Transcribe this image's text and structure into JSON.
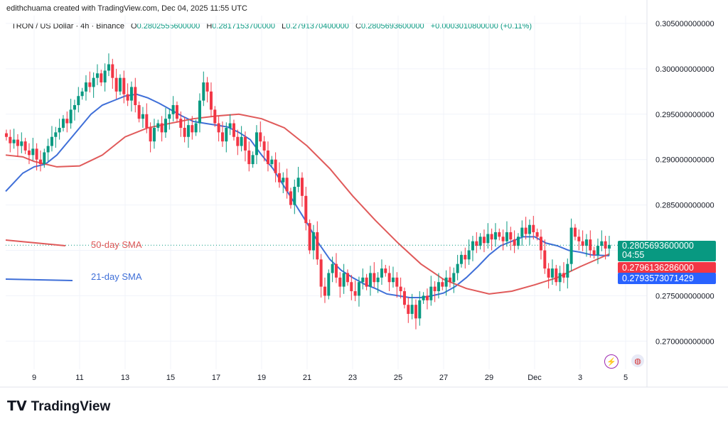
{
  "header": {
    "credit": "edithchuama created with TradingView.com, Dec 04, 2025 11:55 UTC",
    "symbol": "TRON / US Dollar · 4h · Binance",
    "o_label": "O",
    "o": "0.2802555600000",
    "h_label": "H",
    "h": "0.2817153700000",
    "l_label": "L",
    "l": "0.2791370400000",
    "c_label": "C",
    "c": "0.2805693600000",
    "change": "+0.0003010800000 (+0.11%)"
  },
  "badges": {
    "last_price": "0.2805693600000",
    "countdown": "04:55",
    "sma50": "0.2796136286000",
    "sma21": "0.2793573071429"
  },
  "colors": {
    "up": "#089981",
    "down": "#f23645",
    "sma50": "#e05a5a",
    "sma21": "#3f6fd8",
    "last": "#089981",
    "sma21_badge": "#2962ff"
  },
  "brand": "TradingView",
  "chart_data": {
    "type": "candlestick",
    "interval": "4h",
    "ylim": [
      0.267,
      0.306
    ],
    "yticks": [
      "0.305000000000",
      "0.300000000000",
      "0.295000000000",
      "0.290000000000",
      "0.285000000000",
      "0.280000000000",
      "0.275000000000",
      "0.270000000000"
    ],
    "yticks_values": [
      0.305,
      0.3,
      0.295,
      0.29,
      0.285,
      0.28,
      0.275,
      0.27
    ],
    "xticks": [
      {
        "label": "9",
        "day": 9
      },
      {
        "label": "11",
        "day": 11
      },
      {
        "label": "13",
        "day": 13
      },
      {
        "label": "15",
        "day": 15
      },
      {
        "label": "17",
        "day": 17
      },
      {
        "label": "19",
        "day": 19
      },
      {
        "label": "21",
        "day": 21
      },
      {
        "label": "23",
        "day": 23
      },
      {
        "label": "25",
        "day": 25
      },
      {
        "label": "27",
        "day": 27
      },
      {
        "label": "29",
        "day": 29
      },
      {
        "label": "Dec",
        "day": 31
      },
      {
        "label": "3",
        "day": 33
      },
      {
        "label": "5",
        "day": 35
      }
    ],
    "last_candle_day": 34.28,
    "closes": [
      0.2925,
      0.2918,
      0.2922,
      0.2915,
      0.292,
      0.291,
      0.2905,
      0.2912,
      0.29,
      0.2895,
      0.2908,
      0.2915,
      0.2925,
      0.293,
      0.2935,
      0.2945,
      0.294,
      0.2955,
      0.296,
      0.297,
      0.2975,
      0.2985,
      0.298,
      0.299,
      0.2995,
      0.2985,
      0.2998,
      0.3005,
      0.299,
      0.2975,
      0.299,
      0.2972,
      0.2965,
      0.298,
      0.296,
      0.2945,
      0.295,
      0.2935,
      0.292,
      0.2935,
      0.294,
      0.293,
      0.2945,
      0.295,
      0.296,
      0.2945,
      0.2935,
      0.2925,
      0.2938,
      0.293,
      0.294,
      0.2965,
      0.2985,
      0.2975,
      0.2955,
      0.294,
      0.293,
      0.292,
      0.2935,
      0.294,
      0.2925,
      0.2915,
      0.2925,
      0.291,
      0.2895,
      0.2905,
      0.293,
      0.292,
      0.291,
      0.2895,
      0.29,
      0.2885,
      0.2875,
      0.288,
      0.2865,
      0.285,
      0.287,
      0.288,
      0.286,
      0.283,
      0.28,
      0.282,
      0.279,
      0.276,
      0.275,
      0.2775,
      0.2785,
      0.277,
      0.276,
      0.2775,
      0.2765,
      0.2755,
      0.275,
      0.2765,
      0.277,
      0.276,
      0.2775,
      0.2765,
      0.277,
      0.278,
      0.2775,
      0.2765,
      0.277,
      0.276,
      0.2755,
      0.274,
      0.273,
      0.274,
      0.2725,
      0.2745,
      0.275,
      0.2745,
      0.276,
      0.2755,
      0.2765,
      0.276,
      0.277,
      0.2765,
      0.2775,
      0.2785,
      0.2795,
      0.279,
      0.28,
      0.281,
      0.2805,
      0.2815,
      0.2808,
      0.2818,
      0.2812,
      0.282,
      0.2815,
      0.281,
      0.282,
      0.2812,
      0.2805,
      0.2815,
      0.2825,
      0.2818,
      0.2828,
      0.282,
      0.2815,
      0.28,
      0.278,
      0.277,
      0.278,
      0.2765,
      0.2775,
      0.277,
      0.2785,
      0.2825,
      0.2815,
      0.281,
      0.2805,
      0.2812,
      0.28,
      0.2795,
      0.2805,
      0.281,
      0.2802,
      0.2806
    ],
    "series": [
      {
        "name": "21-day SMA",
        "color": "#3f6fd8",
        "points": [
          [
            7.75,
            0.2865
          ],
          [
            8.5,
            0.2885
          ],
          [
            9,
            0.2892
          ],
          [
            9.5,
            0.2895
          ],
          [
            10,
            0.2905
          ],
          [
            10.5,
            0.292
          ],
          [
            11,
            0.2935
          ],
          [
            11.5,
            0.295
          ],
          [
            12,
            0.296
          ],
          [
            12.5,
            0.2965
          ],
          [
            13,
            0.297
          ],
          [
            13.5,
            0.2972
          ],
          [
            14,
            0.2968
          ],
          [
            14.5,
            0.2962
          ],
          [
            15,
            0.2955
          ],
          [
            15.5,
            0.2948
          ],
          [
            16,
            0.2942
          ],
          [
            16.5,
            0.294
          ],
          [
            17,
            0.2938
          ],
          [
            17.5,
            0.2936
          ],
          [
            18,
            0.293
          ],
          [
            18.5,
            0.2922
          ],
          [
            19,
            0.2905
          ],
          [
            19.5,
            0.289
          ],
          [
            20,
            0.287
          ],
          [
            20.5,
            0.285
          ],
          [
            21,
            0.283
          ],
          [
            21.5,
            0.2808
          ],
          [
            22,
            0.279
          ],
          [
            22.5,
            0.2778
          ],
          [
            23,
            0.277
          ],
          [
            23.5,
            0.2763
          ],
          [
            24,
            0.2758
          ],
          [
            24.5,
            0.2752
          ],
          [
            25,
            0.275
          ],
          [
            25.5,
            0.2748
          ],
          [
            26,
            0.2748
          ],
          [
            26.5,
            0.275
          ],
          [
            27,
            0.2753
          ],
          [
            27.5,
            0.276
          ],
          [
            28,
            0.277
          ],
          [
            28.5,
            0.2782
          ],
          [
            29,
            0.2795
          ],
          [
            29.5,
            0.2805
          ],
          [
            30,
            0.281
          ],
          [
            30.5,
            0.2815
          ],
          [
            31,
            0.2815
          ],
          [
            31.5,
            0.2808
          ],
          [
            32,
            0.2805
          ],
          [
            32.5,
            0.28
          ],
          [
            33,
            0.2798
          ],
          [
            33.5,
            0.2795
          ],
          [
            34.28,
            0.2794
          ]
        ]
      },
      {
        "name": "50-day SMA",
        "color": "#e05a5a",
        "points": [
          [
            7.75,
            0.2905
          ],
          [
            8.5,
            0.2903
          ],
          [
            9,
            0.2898
          ],
          [
            10,
            0.2892
          ],
          [
            11,
            0.2893
          ],
          [
            12,
            0.2905
          ],
          [
            12.5,
            0.2915
          ],
          [
            13,
            0.2925
          ],
          [
            14,
            0.2935
          ],
          [
            15,
            0.294
          ],
          [
            16,
            0.2945
          ],
          [
            17,
            0.2948
          ],
          [
            18,
            0.295
          ],
          [
            19,
            0.2945
          ],
          [
            20,
            0.2935
          ],
          [
            21,
            0.2915
          ],
          [
            22,
            0.289
          ],
          [
            23,
            0.286
          ],
          [
            24,
            0.2833
          ],
          [
            25,
            0.2808
          ],
          [
            26,
            0.2785
          ],
          [
            27,
            0.2768
          ],
          [
            28,
            0.2758
          ],
          [
            29,
            0.2752
          ],
          [
            30,
            0.2755
          ],
          [
            31,
            0.2762
          ],
          [
            32,
            0.277
          ],
          [
            33,
            0.2782
          ],
          [
            34.28,
            0.2796
          ]
        ]
      }
    ],
    "legend": [
      "50-day SMA",
      "21-day SMA"
    ]
  }
}
